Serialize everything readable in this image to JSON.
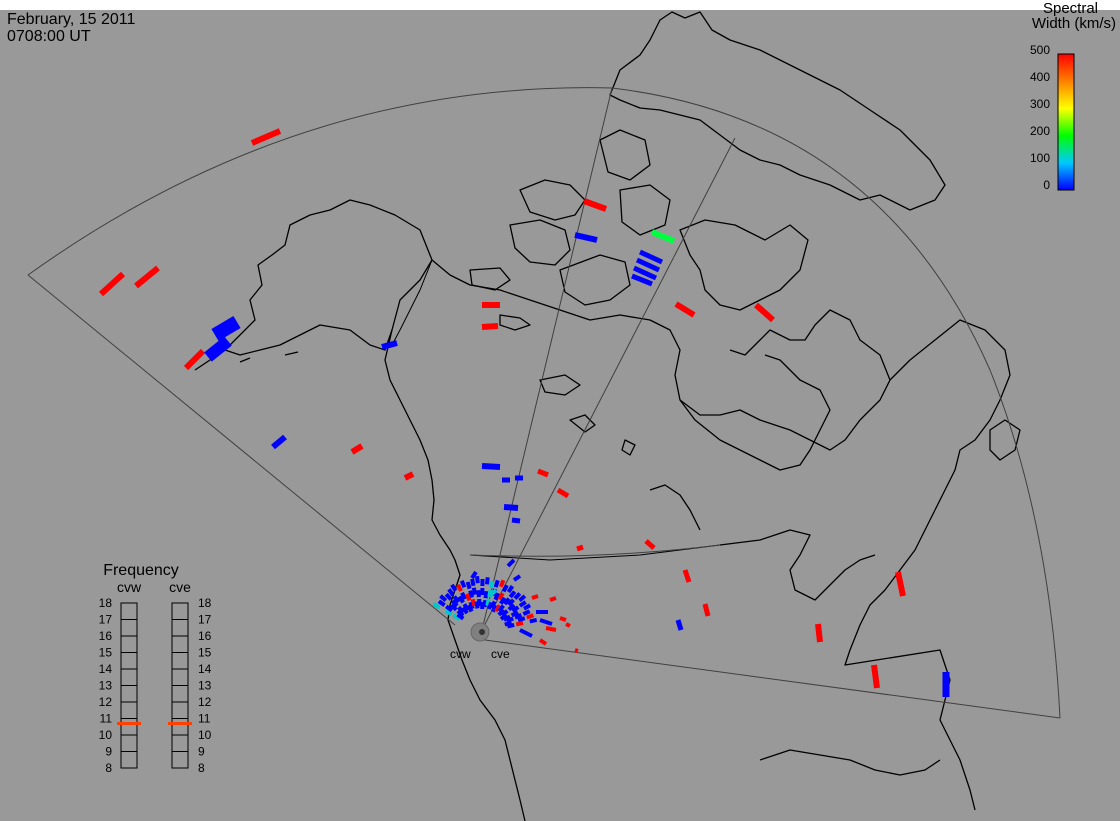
{
  "header": {
    "date": "February, 15 2011",
    "time": "0708:00 UT"
  },
  "colorbar": {
    "title_line1": "Spectral",
    "title_line2": "Width (km/s)",
    "ticks": [
      "500",
      "400",
      "300",
      "200",
      "100",
      "0"
    ],
    "range": [
      0,
      500
    ],
    "colors": [
      "#0000ff",
      "#00c8ff",
      "#00ff00",
      "#ffff00",
      "#ff8000",
      "#ff0000"
    ]
  },
  "frequency_panel": {
    "title": "Frequency",
    "radars": [
      {
        "name": "cvw",
        "selected_mhz": 10.7,
        "marker_color": "#ff4000"
      },
      {
        "name": "cve",
        "selected_mhz": 10.7,
        "marker_color": "#ff4000"
      }
    ],
    "scale_labels": [
      "18",
      "17",
      "16",
      "15",
      "14",
      "13",
      "12",
      "11",
      "10",
      "9",
      "8"
    ]
  },
  "site_labels": {
    "west": "cvw",
    "east": "cve"
  },
  "colors": {
    "background": "#999999",
    "coast": "#000000",
    "fov": "#404040",
    "low_width": "#0000ff",
    "high_width": "#ff0000",
    "mid_width": "#00ff40"
  }
}
